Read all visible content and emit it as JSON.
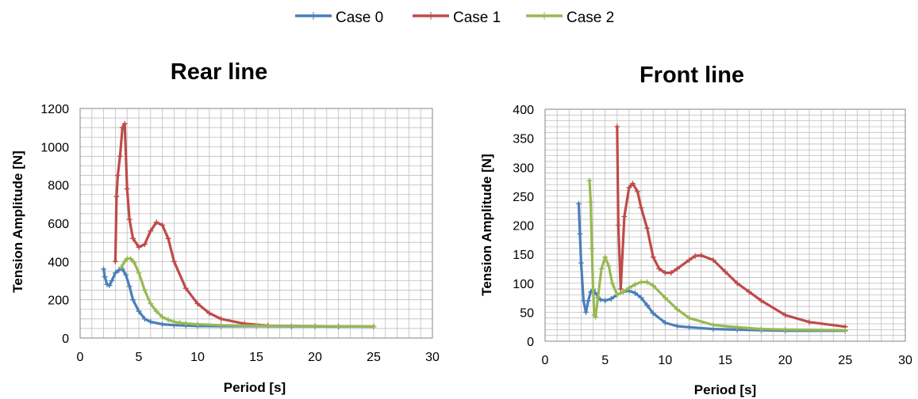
{
  "legend": {
    "placement": "top-center",
    "entries": [
      {
        "label": "Case 0",
        "color": "#4a7ebb"
      },
      {
        "label": "Case 1",
        "color": "#be4b48"
      },
      {
        "label": "Case 2",
        "color": "#98b954"
      }
    ]
  },
  "colors": {
    "grid": "#bfbfbf",
    "frame": "#868686",
    "text": "#000000"
  },
  "chart_data": [
    {
      "type": "scatter",
      "title": "Rear line",
      "xlabel": "Period [s]",
      "ylabel": "Tension Amplitude [N]",
      "xlim": [
        0,
        30
      ],
      "ylim": [
        0,
        1200
      ],
      "xticks": [
        0,
        5,
        10,
        15,
        20,
        25,
        30
      ],
      "yticks": [
        0,
        200,
        400,
        600,
        800,
        1000,
        1200
      ],
      "minor_grid": {
        "x": 1,
        "y": 50
      },
      "grid": true,
      "series": [
        {
          "name": "Case 0",
          "x": [
            2.0,
            2.1,
            2.3,
            2.5,
            2.7,
            3.0,
            3.3,
            3.6,
            3.9,
            4.2,
            4.5,
            5.0,
            5.5,
            6.0,
            7.0,
            8.0,
            9.0,
            10,
            12,
            15,
            18,
            20,
            22,
            25
          ],
          "y": [
            360,
            320,
            280,
            275,
            300,
            340,
            355,
            360,
            330,
            270,
            200,
            140,
            100,
            85,
            72,
            68,
            65,
            63,
            62,
            62,
            61,
            61,
            60,
            60
          ]
        },
        {
          "name": "Case 1",
          "x": [
            3.0,
            3.1,
            3.2,
            3.4,
            3.6,
            3.8,
            4.0,
            4.2,
            4.5,
            5.0,
            5.5,
            6.0,
            6.5,
            7.0,
            7.5,
            8.0,
            9.0,
            10,
            11,
            12,
            14,
            16,
            20,
            25
          ],
          "y": [
            400,
            740,
            850,
            950,
            1100,
            1120,
            780,
            620,
            520,
            475,
            490,
            560,
            605,
            590,
            520,
            400,
            260,
            180,
            130,
            100,
            75,
            65,
            62,
            60
          ]
        },
        {
          "name": "Case 2",
          "x": [
            3.5,
            3.8,
            4.0,
            4.3,
            4.6,
            5.0,
            5.5,
            6.0,
            6.5,
            7.0,
            7.5,
            8.0,
            8.5,
            9.0,
            10,
            12,
            15,
            20,
            25
          ],
          "y": [
            370,
            400,
            415,
            415,
            395,
            340,
            250,
            180,
            140,
            110,
            95,
            85,
            80,
            76,
            72,
            67,
            64,
            62,
            60
          ]
        }
      ]
    },
    {
      "type": "scatter",
      "title": "Front line",
      "xlabel": "Period [s]",
      "ylabel": "Tension Amplitude [N]",
      "xlim": [
        0,
        30
      ],
      "ylim": [
        0,
        400
      ],
      "xticks": [
        0,
        5,
        10,
        15,
        20,
        25,
        30
      ],
      "yticks": [
        0,
        50,
        100,
        150,
        200,
        250,
        300,
        350,
        400
      ],
      "minor_grid": {
        "x": 1,
        "y": 10
      },
      "grid": true,
      "series": [
        {
          "name": "Case 0",
          "x": [
            2.8,
            2.9,
            3.0,
            3.2,
            3.4,
            3.6,
            3.8,
            4.0,
            4.3,
            4.6,
            5.0,
            5.5,
            6.0,
            6.5,
            7.0,
            7.5,
            8.0,
            8.5,
            9.0,
            10,
            11,
            12,
            14,
            16,
            18,
            20,
            25
          ],
          "y": [
            237,
            185,
            135,
            70,
            50,
            70,
            85,
            88,
            80,
            72,
            70,
            73,
            80,
            85,
            87,
            83,
            75,
            62,
            48,
            32,
            26,
            24,
            21,
            20,
            19,
            18,
            18
          ]
        },
        {
          "name": "Case 1",
          "x": [
            6.0,
            6.1,
            6.3,
            6.6,
            7.0,
            7.3,
            7.7,
            8.0,
            8.5,
            9.0,
            9.5,
            10,
            10.5,
            11,
            12,
            12.5,
            13,
            14,
            15,
            16,
            17,
            18,
            20,
            22,
            25
          ],
          "y": [
            370,
            200,
            90,
            215,
            265,
            272,
            258,
            230,
            195,
            145,
            125,
            118,
            118,
            125,
            140,
            147,
            148,
            140,
            120,
            100,
            85,
            70,
            45,
            33,
            25
          ]
        },
        {
          "name": "Case 2",
          "x": [
            3.7,
            3.8,
            3.9,
            4.0,
            4.1,
            4.2,
            4.4,
            4.7,
            5.0,
            5.3,
            5.6,
            6.0,
            6.5,
            7.0,
            7.5,
            8.0,
            8.5,
            9.0,
            10,
            11,
            12,
            14,
            16,
            18,
            20,
            25
          ],
          "y": [
            277,
            240,
            160,
            90,
            45,
            42,
            75,
            125,
            145,
            130,
            100,
            80,
            85,
            92,
            98,
            102,
            102,
            96,
            75,
            55,
            40,
            28,
            24,
            21,
            20,
            19
          ]
        }
      ]
    }
  ]
}
